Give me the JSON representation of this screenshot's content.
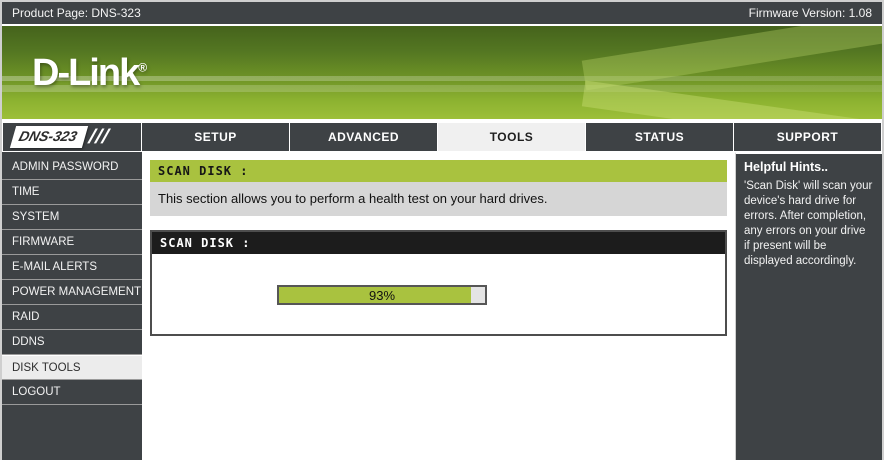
{
  "header": {
    "product_page_label": "Product Page: DNS-323",
    "firmware_label": "Firmware Version: 1.08",
    "brand": "D-Link",
    "brand_reg": "®",
    "model_badge": "DNS-323",
    "model_slashes": "///"
  },
  "nav": {
    "tabs": [
      {
        "label": "SETUP",
        "active": false
      },
      {
        "label": "ADVANCED",
        "active": false
      },
      {
        "label": "TOOLS",
        "active": true
      },
      {
        "label": "STATUS",
        "active": false
      },
      {
        "label": "SUPPORT",
        "active": false
      }
    ]
  },
  "sidebar": {
    "items": [
      {
        "label": "ADMIN PASSWORD",
        "active": false
      },
      {
        "label": "TIME",
        "active": false
      },
      {
        "label": "SYSTEM",
        "active": false
      },
      {
        "label": "FIRMWARE",
        "active": false
      },
      {
        "label": "E-MAIL ALERTS",
        "active": false
      },
      {
        "label": "POWER MANAGEMENT",
        "active": false
      },
      {
        "label": "RAID",
        "active": false
      },
      {
        "label": "DDNS",
        "active": false
      },
      {
        "label": "DISK TOOLS",
        "active": true
      },
      {
        "label": "LOGOUT",
        "active": false
      }
    ]
  },
  "main": {
    "intro": {
      "title": "SCAN DISK :",
      "description": "This section allows you to perform a health test on your hard drives."
    },
    "scan": {
      "title": "SCAN DISK :",
      "progress_percent": 93,
      "progress_label": "93%"
    }
  },
  "hints": {
    "title": "Helpful Hints..",
    "body": "'Scan Disk' will scan your device's hard drive for errors. After completion, any errors on your drive if present will be displayed accordingly."
  },
  "colors": {
    "accent_green": "#a9c23f",
    "dark_panel": "#3e4245",
    "progress_track": "#e4e4e4"
  }
}
